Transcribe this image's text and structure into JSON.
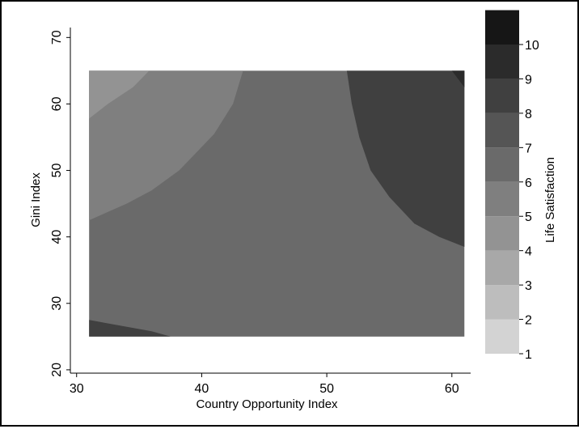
{
  "chart_data": {
    "type": "contour",
    "xlabel": "Country Opportunity Index",
    "ylabel": "Gini Index",
    "colorbar_label": "Life Satisfaction",
    "xlim": [
      29.5,
      61.5
    ],
    "ylim": [
      19.5,
      71.5
    ],
    "x_ticks": [
      30,
      40,
      50,
      60
    ],
    "y_ticks": [
      20,
      30,
      40,
      50,
      60,
      70
    ],
    "data_extent": {
      "x": [
        31,
        61
      ],
      "y": [
        25,
        65
      ]
    },
    "colorbar": {
      "levels": [
        1,
        2,
        3,
        4,
        5,
        6,
        7,
        8,
        9,
        10
      ],
      "colors": [
        "#d3d3d3",
        "#bdbdbd",
        "#a8a8a8",
        "#939393",
        "#7f7f7f",
        "#6a6a6a",
        "#555555",
        "#404040",
        "#2b2b2b",
        "#161616"
      ]
    },
    "regions": [
      {
        "band": "5-6",
        "color": "#7f7f7f",
        "polygon": [
          [
            31,
            42.5
          ],
          [
            34,
            45
          ],
          [
            36,
            47
          ],
          [
            38.2,
            50
          ],
          [
            41,
            55.5
          ],
          [
            42.5,
            60
          ],
          [
            43.3,
            65
          ],
          [
            36,
            65
          ],
          [
            31,
            65
          ]
        ]
      },
      {
        "band": "4-5",
        "color": "#939393",
        "polygon": [
          [
            31,
            57.8
          ],
          [
            32.5,
            60
          ],
          [
            34.5,
            62.5
          ],
          [
            35.8,
            65
          ],
          [
            31,
            65
          ]
        ]
      },
      {
        "band": "7-8",
        "color": "#404040",
        "polygon": [
          [
            31,
            27.5
          ],
          [
            36,
            25.8
          ],
          [
            37.5,
            25
          ],
          [
            31,
            25
          ]
        ]
      },
      {
        "band": "7-8",
        "color": "#404040",
        "polygon": [
          [
            51.6,
            65
          ],
          [
            52,
            60
          ],
          [
            52.6,
            55
          ],
          [
            53.5,
            50
          ],
          [
            55,
            46
          ],
          [
            57,
            42
          ],
          [
            59,
            40
          ],
          [
            61,
            38.5
          ],
          [
            61,
            65
          ]
        ]
      },
      {
        "band": "8-9",
        "color": "#2b2b2b",
        "polygon": [
          [
            60,
            65
          ],
          [
            61,
            65
          ],
          [
            61,
            62.5
          ]
        ]
      }
    ],
    "base_band": {
      "band": "6-7",
      "color": "#6a6a6a"
    }
  }
}
